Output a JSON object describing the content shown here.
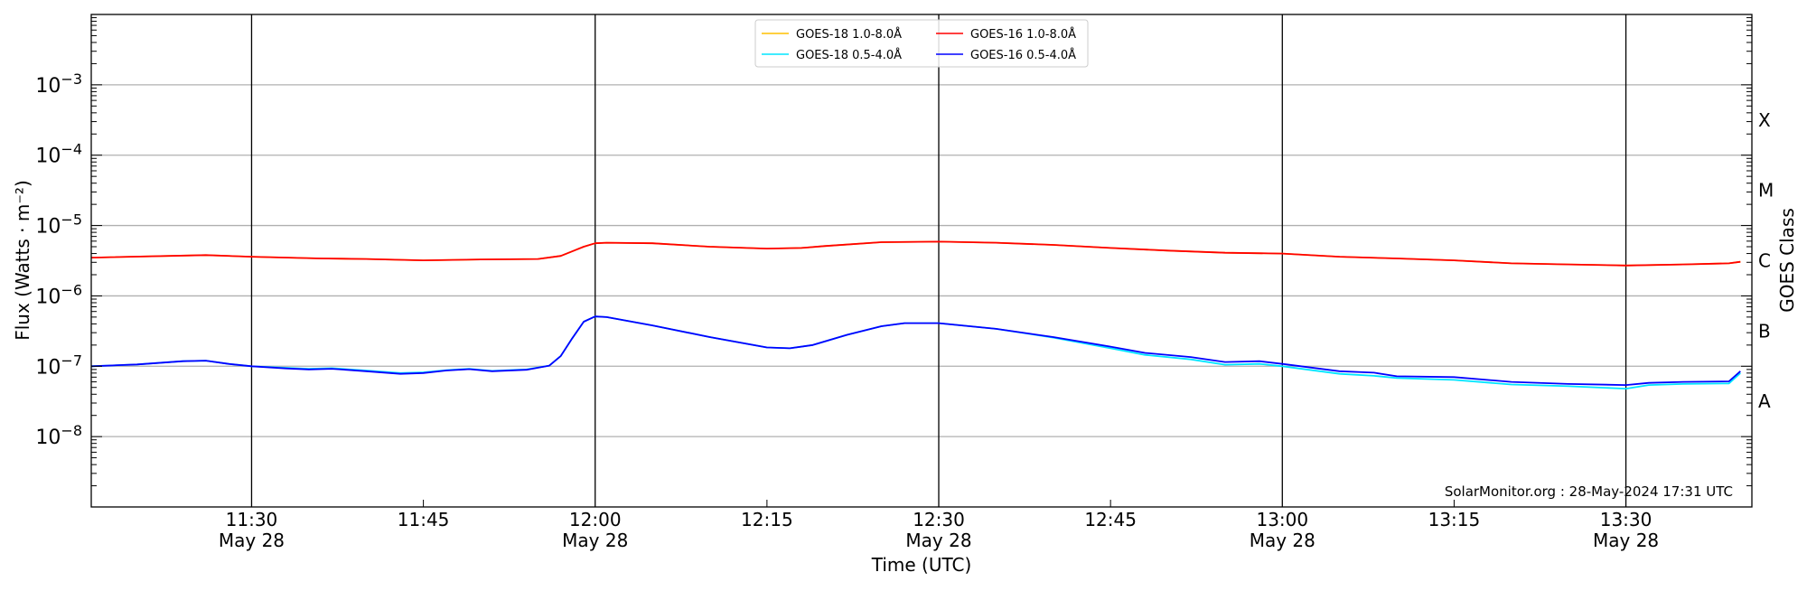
{
  "chart_data": {
    "type": "line",
    "xlabel": "Time (UTC)",
    "ylabel": "Flux (Watts · m⁻²)",
    "ylabel_right": "GOES Class",
    "yscale": "log",
    "xlim": [
      "11:16",
      "13:41"
    ],
    "ylim": [
      1e-09,
      0.01
    ],
    "grid": true,
    "legend_placement": "top-center",
    "y_tick_labels": [
      {
        "value": 1e-08,
        "base": "10",
        "exp": "−8"
      },
      {
        "value": 1e-07,
        "base": "10",
        "exp": "−7"
      },
      {
        "value": 1e-06,
        "base": "10",
        "exp": "−6"
      },
      {
        "value": 1e-05,
        "base": "10",
        "exp": "−5"
      },
      {
        "value": 0.0001,
        "base": "10",
        "exp": "−4"
      },
      {
        "value": 0.001,
        "base": "10",
        "exp": "−3"
      }
    ],
    "x_ticks": [
      {
        "time": "11:30",
        "label": "11:30",
        "date": "May 28",
        "major": true
      },
      {
        "time": "11:45",
        "label": "11:45",
        "date": "",
        "major": false
      },
      {
        "time": "12:00",
        "label": "12:00",
        "date": "May 28",
        "major": true
      },
      {
        "time": "12:15",
        "label": "12:15",
        "date": "",
        "major": false
      },
      {
        "time": "12:30",
        "label": "12:30",
        "date": "May 28",
        "major": true
      },
      {
        "time": "12:45",
        "label": "12:45",
        "date": "",
        "major": false
      },
      {
        "time": "13:00",
        "label": "13:00",
        "date": "May 28",
        "major": true
      },
      {
        "time": "13:15",
        "label": "13:15",
        "date": "",
        "major": false
      },
      {
        "time": "13:30",
        "label": "13:30",
        "date": "May 28",
        "major": true
      }
    ],
    "goes_classes": [
      {
        "label": "X",
        "value": 0.000316
      },
      {
        "label": "M",
        "value": 3.16e-05
      },
      {
        "label": "C",
        "value": 3.16e-06
      },
      {
        "label": "B",
        "value": 3.16e-07
      },
      {
        "label": "A",
        "value": 3.16e-08
      }
    ],
    "series": [
      {
        "name": "GOES-18 1.0-8.0Å",
        "color": "#ffc000",
        "x": [
          "11:16",
          "11:26",
          "11:30",
          "11:36",
          "11:40",
          "11:45",
          "11:50",
          "11:55",
          "11:57",
          "11:59",
          "12:00",
          "12:01",
          "12:05",
          "12:10",
          "12:15",
          "12:18",
          "12:20",
          "12:25",
          "12:30",
          "12:35",
          "12:40",
          "12:45",
          "12:50",
          "12:55",
          "13:00",
          "13:05",
          "13:10",
          "13:15",
          "13:20",
          "13:25",
          "13:30",
          "13:35",
          "13:39",
          "13:40"
        ],
        "y": [
          3.5e-06,
          3.8e-06,
          3.6e-06,
          3.4e-06,
          3.35e-06,
          3.2e-06,
          3.3e-06,
          3.35e-06,
          3.7e-06,
          5e-06,
          5.6e-06,
          5.7e-06,
          5.6e-06,
          5e-06,
          4.7e-06,
          4.8e-06,
          5.1e-06,
          5.8e-06,
          5.9e-06,
          5.7e-06,
          5.3e-06,
          4.8e-06,
          4.4e-06,
          4.1e-06,
          4e-06,
          3.6e-06,
          3.4e-06,
          3.2e-06,
          2.9e-06,
          2.8e-06,
          2.7e-06,
          2.8e-06,
          2.9e-06,
          3.05e-06
        ]
      },
      {
        "name": "GOES-18 0.5-4.0Å",
        "color": "#00e5ff",
        "x": [
          "11:16",
          "11:20",
          "11:24",
          "11:26",
          "11:28",
          "11:30",
          "11:33",
          "11:35",
          "11:37",
          "11:40",
          "11:43",
          "11:45",
          "11:47",
          "11:49",
          "11:51",
          "11:54",
          "11:56",
          "11:57",
          "11:58",
          "11:59",
          "12:00",
          "12:01",
          "12:05",
          "12:10",
          "12:15",
          "12:17",
          "12:19",
          "12:22",
          "12:25",
          "12:27",
          "12:30",
          "12:35",
          "12:40",
          "12:45",
          "12:48",
          "12:52",
          "12:55",
          "12:58",
          "13:00",
          "13:05",
          "13:08",
          "13:10",
          "13:15",
          "13:20",
          "13:25",
          "13:30",
          "13:32",
          "13:35",
          "13:39",
          "13:40"
        ],
        "y": [
          1e-07,
          1.06e-07,
          1.18e-07,
          1.2e-07,
          1.08e-07,
          1e-07,
          9.5e-08,
          9.2e-08,
          9.4e-08,
          8.7e-08,
          8e-08,
          8.2e-08,
          8.8e-08,
          9.2e-08,
          8.6e-08,
          9e-08,
          1.02e-07,
          1.4e-07,
          2.5e-07,
          4.3e-07,
          5.1e-07,
          5e-07,
          3.8e-07,
          2.6e-07,
          1.85e-07,
          1.8e-07,
          2e-07,
          2.8e-07,
          3.7e-07,
          4.1e-07,
          4.1e-07,
          3.4e-07,
          2.55e-07,
          1.8e-07,
          1.45e-07,
          1.25e-07,
          1.05e-07,
          1.08e-07,
          1e-07,
          7.8e-08,
          7.3e-08,
          6.8e-08,
          6.4e-08,
          5.5e-08,
          5.2e-08,
          4.8e-08,
          5.4e-08,
          5.6e-08,
          5.7e-08,
          8e-08
        ]
      },
      {
        "name": "GOES-16 1.0-8.0Å",
        "color": "#ff0000",
        "x": [
          "11:16",
          "11:26",
          "11:30",
          "11:36",
          "11:40",
          "11:45",
          "11:50",
          "11:55",
          "11:57",
          "11:59",
          "12:00",
          "12:01",
          "12:05",
          "12:10",
          "12:15",
          "12:18",
          "12:20",
          "12:25",
          "12:30",
          "12:35",
          "12:40",
          "12:45",
          "12:50",
          "12:55",
          "13:00",
          "13:05",
          "13:10",
          "13:15",
          "13:20",
          "13:25",
          "13:30",
          "13:35",
          "13:39",
          "13:40"
        ],
        "y": [
          3.5e-06,
          3.8e-06,
          3.6e-06,
          3.4e-06,
          3.35e-06,
          3.2e-06,
          3.3e-06,
          3.35e-06,
          3.7e-06,
          5e-06,
          5.6e-06,
          5.7e-06,
          5.6e-06,
          5e-06,
          4.7e-06,
          4.8e-06,
          5.1e-06,
          5.8e-06,
          5.9e-06,
          5.7e-06,
          5.3e-06,
          4.8e-06,
          4.4e-06,
          4.1e-06,
          4e-06,
          3.6e-06,
          3.4e-06,
          3.2e-06,
          2.9e-06,
          2.8e-06,
          2.7e-06,
          2.8e-06,
          2.9e-06,
          3.05e-06
        ]
      },
      {
        "name": "GOES-16 0.5-4.0Å",
        "color": "#0000ff",
        "x": [
          "11:16",
          "11:20",
          "11:24",
          "11:26",
          "11:28",
          "11:30",
          "11:33",
          "11:35",
          "11:37",
          "11:40",
          "11:43",
          "11:45",
          "11:47",
          "11:49",
          "11:51",
          "11:54",
          "11:56",
          "11:57",
          "11:58",
          "11:59",
          "12:00",
          "12:01",
          "12:05",
          "12:10",
          "12:15",
          "12:17",
          "12:19",
          "12:22",
          "12:25",
          "12:27",
          "12:30",
          "12:35",
          "12:40",
          "12:45",
          "12:48",
          "12:52",
          "12:55",
          "12:58",
          "13:00",
          "13:05",
          "13:08",
          "13:10",
          "13:15",
          "13:20",
          "13:25",
          "13:30",
          "13:32",
          "13:35",
          "13:39",
          "13:40"
        ],
        "y": [
          1e-07,
          1.06e-07,
          1.18e-07,
          1.2e-07,
          1.08e-07,
          1e-07,
          9.3e-08,
          9e-08,
          9.2e-08,
          8.5e-08,
          7.8e-08,
          8e-08,
          8.7e-08,
          9.1e-08,
          8.5e-08,
          8.9e-08,
          1.02e-07,
          1.4e-07,
          2.5e-07,
          4.3e-07,
          5.1e-07,
          5e-07,
          3.8e-07,
          2.6e-07,
          1.85e-07,
          1.8e-07,
          2e-07,
          2.8e-07,
          3.7e-07,
          4.1e-07,
          4.1e-07,
          3.4e-07,
          2.6e-07,
          1.9e-07,
          1.55e-07,
          1.35e-07,
          1.15e-07,
          1.18e-07,
          1.08e-07,
          8.5e-08,
          8.1e-08,
          7.2e-08,
          7e-08,
          6e-08,
          5.6e-08,
          5.4e-08,
          5.8e-08,
          6e-08,
          6.1e-08,
          8.5e-08
        ]
      }
    ],
    "legend_order": [
      0,
      1,
      2,
      3
    ],
    "annotation": "SolarMonitor.org : 28-May-2024 17:31 UTC"
  }
}
